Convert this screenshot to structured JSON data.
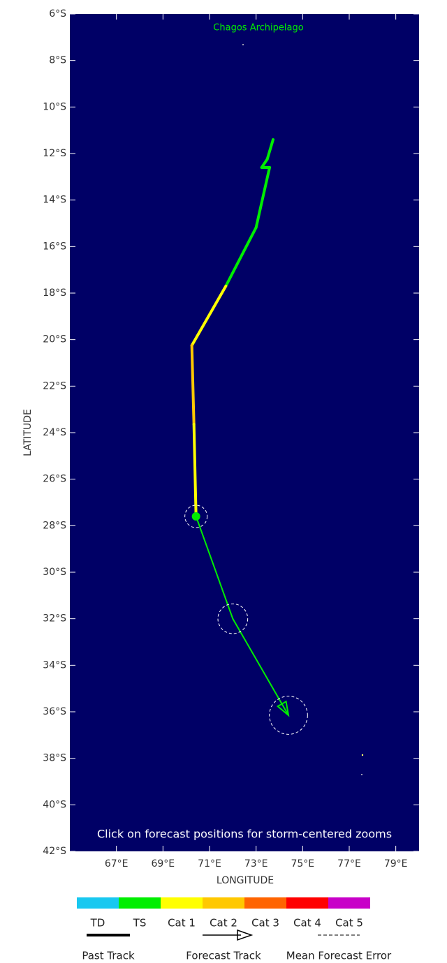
{
  "map": {
    "place_label": "Chagos Archipelago",
    "note": "Click on forecast positions for storm-centered zooms",
    "xlabel": "LONGITUDE",
    "ylabel": "LATITUDE",
    "xlim": [
      65,
      80
    ],
    "ylim": [
      -6,
      -42
    ],
    "xticks": [
      {
        "value": 67,
        "label": "67°E"
      },
      {
        "value": 69,
        "label": "69°E"
      },
      {
        "value": 71,
        "label": "71°E"
      },
      {
        "value": 73,
        "label": "73°E"
      },
      {
        "value": 75,
        "label": "75°E"
      },
      {
        "value": 77,
        "label": "77°E"
      },
      {
        "value": 79,
        "label": "79°E"
      }
    ],
    "yticks": [
      {
        "value": -6,
        "label": "6°S"
      },
      {
        "value": -8,
        "label": "8°S"
      },
      {
        "value": -10,
        "label": "10°S"
      },
      {
        "value": -12,
        "label": "12°S"
      },
      {
        "value": -14,
        "label": "14°S"
      },
      {
        "value": -16,
        "label": "16°S"
      },
      {
        "value": -18,
        "label": "18°S"
      },
      {
        "value": -20,
        "label": "20°S"
      },
      {
        "value": -22,
        "label": "22°S"
      },
      {
        "value": -24,
        "label": "24°S"
      },
      {
        "value": -26,
        "label": "26°S"
      },
      {
        "value": -28,
        "label": "28°S"
      },
      {
        "value": -30,
        "label": "30°S"
      },
      {
        "value": -32,
        "label": "32°S"
      },
      {
        "value": -34,
        "label": "34°S"
      },
      {
        "value": -36,
        "label": "36°S"
      },
      {
        "value": -38,
        "label": "38°S"
      },
      {
        "value": -40,
        "label": "40°S"
      },
      {
        "value": -42,
        "label": "42°S"
      }
    ],
    "past_track": {
      "lon": [
        73.73,
        73.48,
        73.24,
        73.58,
        73.0,
        71.7,
        70.24,
        70.33,
        70.42
      ],
      "lat": [
        -11.4,
        -12.24,
        -12.6,
        -12.6,
        -15.18,
        -17.7,
        -20.25,
        -23.64,
        -27.6
      ],
      "category": [
        "TS",
        "TS",
        "TS",
        "TS",
        "TS",
        "TS",
        "Cat 1",
        "Cat 2",
        "Cat 1"
      ]
    },
    "forecast_track": {
      "lon": [
        70.42,
        72.0,
        74.39
      ],
      "lat": [
        -27.6,
        -32.0,
        -36.15
      ],
      "error_radius": [
        0.48,
        0.64,
        0.82
      ],
      "color": "#00ee00"
    },
    "legend": {
      "categories": [
        {
          "name": "TD",
          "color": "#18c8f0"
        },
        {
          "name": "TS",
          "color": "#00ee00"
        },
        {
          "name": "Cat 1",
          "color": "#ffff00"
        },
        {
          "name": "Cat 2",
          "color": "#ffc800"
        },
        {
          "name": "Cat 3",
          "color": "#ff6400"
        },
        {
          "name": "Cat 4",
          "color": "#ff0000"
        },
        {
          "name": "Cat 5",
          "color": "#c800c8"
        }
      ],
      "past_track": "Past Track",
      "forecast_track": "Forecast Track",
      "error": "Mean Forecast Error"
    }
  }
}
